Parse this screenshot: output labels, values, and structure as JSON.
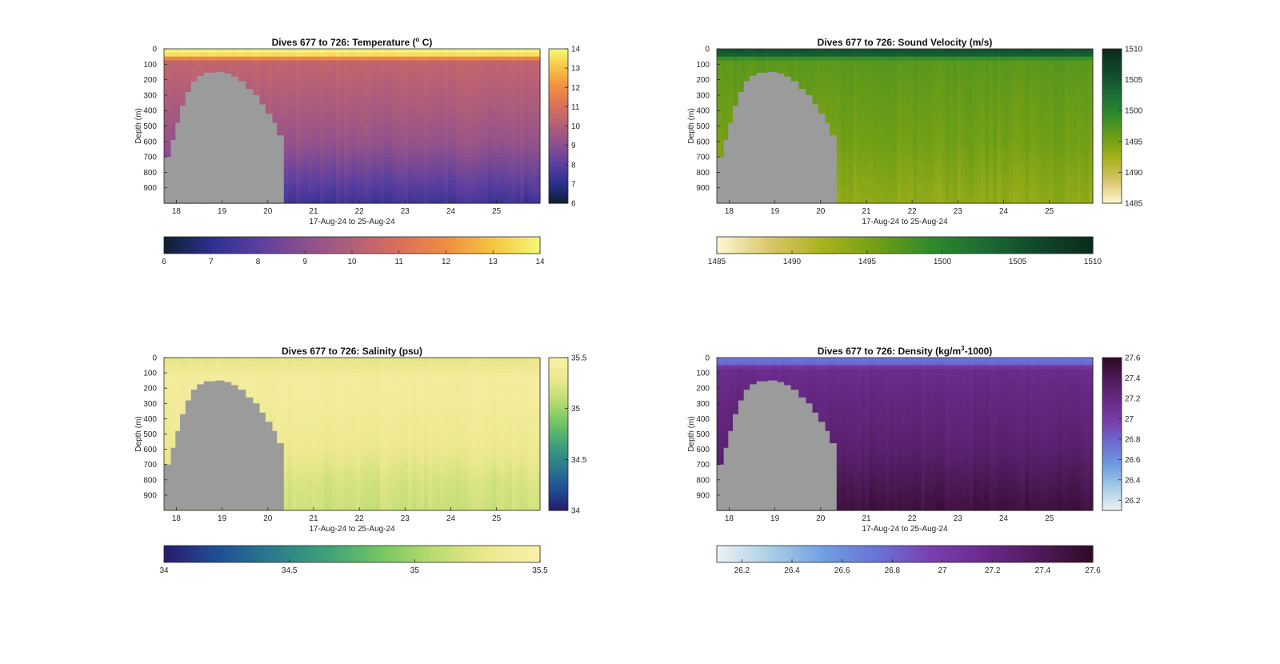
{
  "chart_data": [
    {
      "type": "heatmap",
      "title": "Dives 677 to 726: Temperature (° C)",
      "title_parts": {
        "before": "Dives 677 to 726: Temperature (",
        "sup": "o",
        "after": " C)"
      },
      "xlabel": "17-Aug-24 to 25-Aug-24",
      "ylabel": "Depth (m)",
      "x_ticks": [
        "18",
        "19",
        "20",
        "21",
        "22",
        "23",
        "24",
        "25"
      ],
      "y_ticks": [
        "0",
        "100",
        "200",
        "300",
        "400",
        "500",
        "600",
        "700",
        "800",
        "900"
      ],
      "xlim": [
        17.73,
        25.95
      ],
      "ylim": [
        1000,
        0
      ],
      "colorbar_range": [
        6,
        14
      ],
      "colorbar_ticks": [
        "6",
        "7",
        "8",
        "9",
        "10",
        "11",
        "12",
        "13",
        "14"
      ],
      "hbar_ticks": [
        "6",
        "7",
        "8",
        "9",
        "10",
        "11",
        "12",
        "13",
        "14"
      ],
      "colormap": [
        "#0f1f2f",
        "#2b2f8f",
        "#5b3f9f",
        "#8a4f8f",
        "#b25e7a",
        "#d8705a",
        "#f08d42",
        "#f6c441",
        "#f4f87a"
      ],
      "profile": [
        [
          0,
          14
        ],
        [
          40,
          13.5
        ],
        [
          60,
          12
        ],
        [
          80,
          10.4
        ],
        [
          200,
          10.2
        ],
        [
          400,
          9.8
        ],
        [
          600,
          9.3
        ],
        [
          800,
          8.4
        ],
        [
          1000,
          7.4
        ]
      ],
      "gap_colour": "#9b9b9b",
      "gap_end_x": 20.35,
      "gap_top_depth": 150
    },
    {
      "type": "heatmap",
      "title": "Dives 677 to 726: Sound Velocity (m/s)",
      "xlabel": "17-Aug-24 to 25-Aug-24",
      "ylabel": "Depth (m)",
      "x_ticks": [
        "18",
        "19",
        "20",
        "21",
        "22",
        "23",
        "24",
        "25"
      ],
      "y_ticks": [
        "0",
        "100",
        "200",
        "300",
        "400",
        "500",
        "600",
        "700",
        "800",
        "900"
      ],
      "xlim": [
        17.73,
        25.95
      ],
      "ylim": [
        1000,
        0
      ],
      "colorbar_range": [
        1485,
        1510
      ],
      "colorbar_ticks": [
        "1485",
        "1490",
        "1495",
        "1500",
        "1505",
        "1510"
      ],
      "hbar_ticks": [
        "1485",
        "1490",
        "1495",
        "1500",
        "1505",
        "1510"
      ],
      "colormap": [
        "#fdf8d2",
        "#d9c66a",
        "#a8b21c",
        "#6f9e16",
        "#2f8a2c",
        "#1a6b34",
        "#10472a",
        "#0b2a1a"
      ],
      "profile": [
        [
          0,
          1505.5
        ],
        [
          40,
          1504
        ],
        [
          70,
          1497
        ],
        [
          200,
          1496.5
        ],
        [
          400,
          1496
        ],
        [
          600,
          1495.5
        ],
        [
          800,
          1494.5
        ],
        [
          1000,
          1493.5
        ]
      ],
      "gap_colour": "#9b9b9b",
      "gap_end_x": 20.35,
      "gap_top_depth": 150
    },
    {
      "type": "heatmap",
      "title": "Dives 677 to 726: Salinity (psu)",
      "xlabel": "17-Aug-24 to 25-Aug-24",
      "ylabel": "Depth (m)",
      "x_ticks": [
        "18",
        "19",
        "20",
        "21",
        "22",
        "23",
        "24",
        "25"
      ],
      "y_ticks": [
        "0",
        "100",
        "200",
        "300",
        "400",
        "500",
        "600",
        "700",
        "800",
        "900"
      ],
      "xlim": [
        17.73,
        25.95
      ],
      "ylim": [
        1000,
        0
      ],
      "colorbar_range": [
        34,
        35.5
      ],
      "colorbar_ticks": [
        "34",
        "34.5",
        "35",
        "35.5"
      ],
      "hbar_ticks": [
        "34",
        "34.5",
        "35",
        "35.5"
      ],
      "colormap": [
        "#2a1a6e",
        "#1f4f94",
        "#2b7a8c",
        "#3ea07a",
        "#72c464",
        "#b8dc70",
        "#ece88e",
        "#f8f0a8"
      ],
      "profile": [
        [
          0,
          35.25
        ],
        [
          60,
          35.3
        ],
        [
          120,
          35.4
        ],
        [
          300,
          35.38
        ],
        [
          600,
          35.3
        ],
        [
          800,
          35.2
        ],
        [
          1000,
          35.15
        ]
      ],
      "gap_colour": "#9b9b9b",
      "gap_end_x": 20.35,
      "gap_top_depth": 150
    },
    {
      "type": "heatmap",
      "title": "Dives 677 to 726: Density (kg/m³-1000)",
      "title_parts": {
        "before": "Dives 677 to 726: Density (kg/m",
        "sup": "3",
        "after": "-1000)"
      },
      "xlabel": "17-Aug-24 to 25-Aug-24",
      "ylabel": "Depth (m)",
      "x_ticks": [
        "18",
        "19",
        "20",
        "21",
        "22",
        "23",
        "24",
        "25"
      ],
      "y_ticks": [
        "0",
        "100",
        "200",
        "300",
        "400",
        "500",
        "600",
        "700",
        "800",
        "900"
      ],
      "xlim": [
        17.73,
        25.95
      ],
      "ylim": [
        1000,
        0
      ],
      "colorbar_range": [
        26.1,
        27.6
      ],
      "colorbar_ticks": [
        "26.2",
        "26.4",
        "26.6",
        "26.8",
        "27",
        "27.2",
        "27.4",
        "27.6"
      ],
      "hbar_ticks": [
        "26.2",
        "26.4",
        "26.6",
        "26.8",
        "27",
        "27.2",
        "27.4",
        "27.6"
      ],
      "colormap": [
        "#eef2f3",
        "#a8cfe6",
        "#6f9fe0",
        "#6a72d6",
        "#7a3fae",
        "#6a2a8a",
        "#4f1a5a",
        "#2e0a24"
      ],
      "profile": [
        [
          0,
          26.7
        ],
        [
          40,
          26.8
        ],
        [
          70,
          27.15
        ],
        [
          200,
          27.2
        ],
        [
          400,
          27.25
        ],
        [
          600,
          27.3
        ],
        [
          800,
          27.4
        ],
        [
          1000,
          27.5
        ]
      ],
      "gap_colour": "#9b9b9b",
      "gap_end_x": 20.35,
      "gap_top_depth": 150
    }
  ]
}
